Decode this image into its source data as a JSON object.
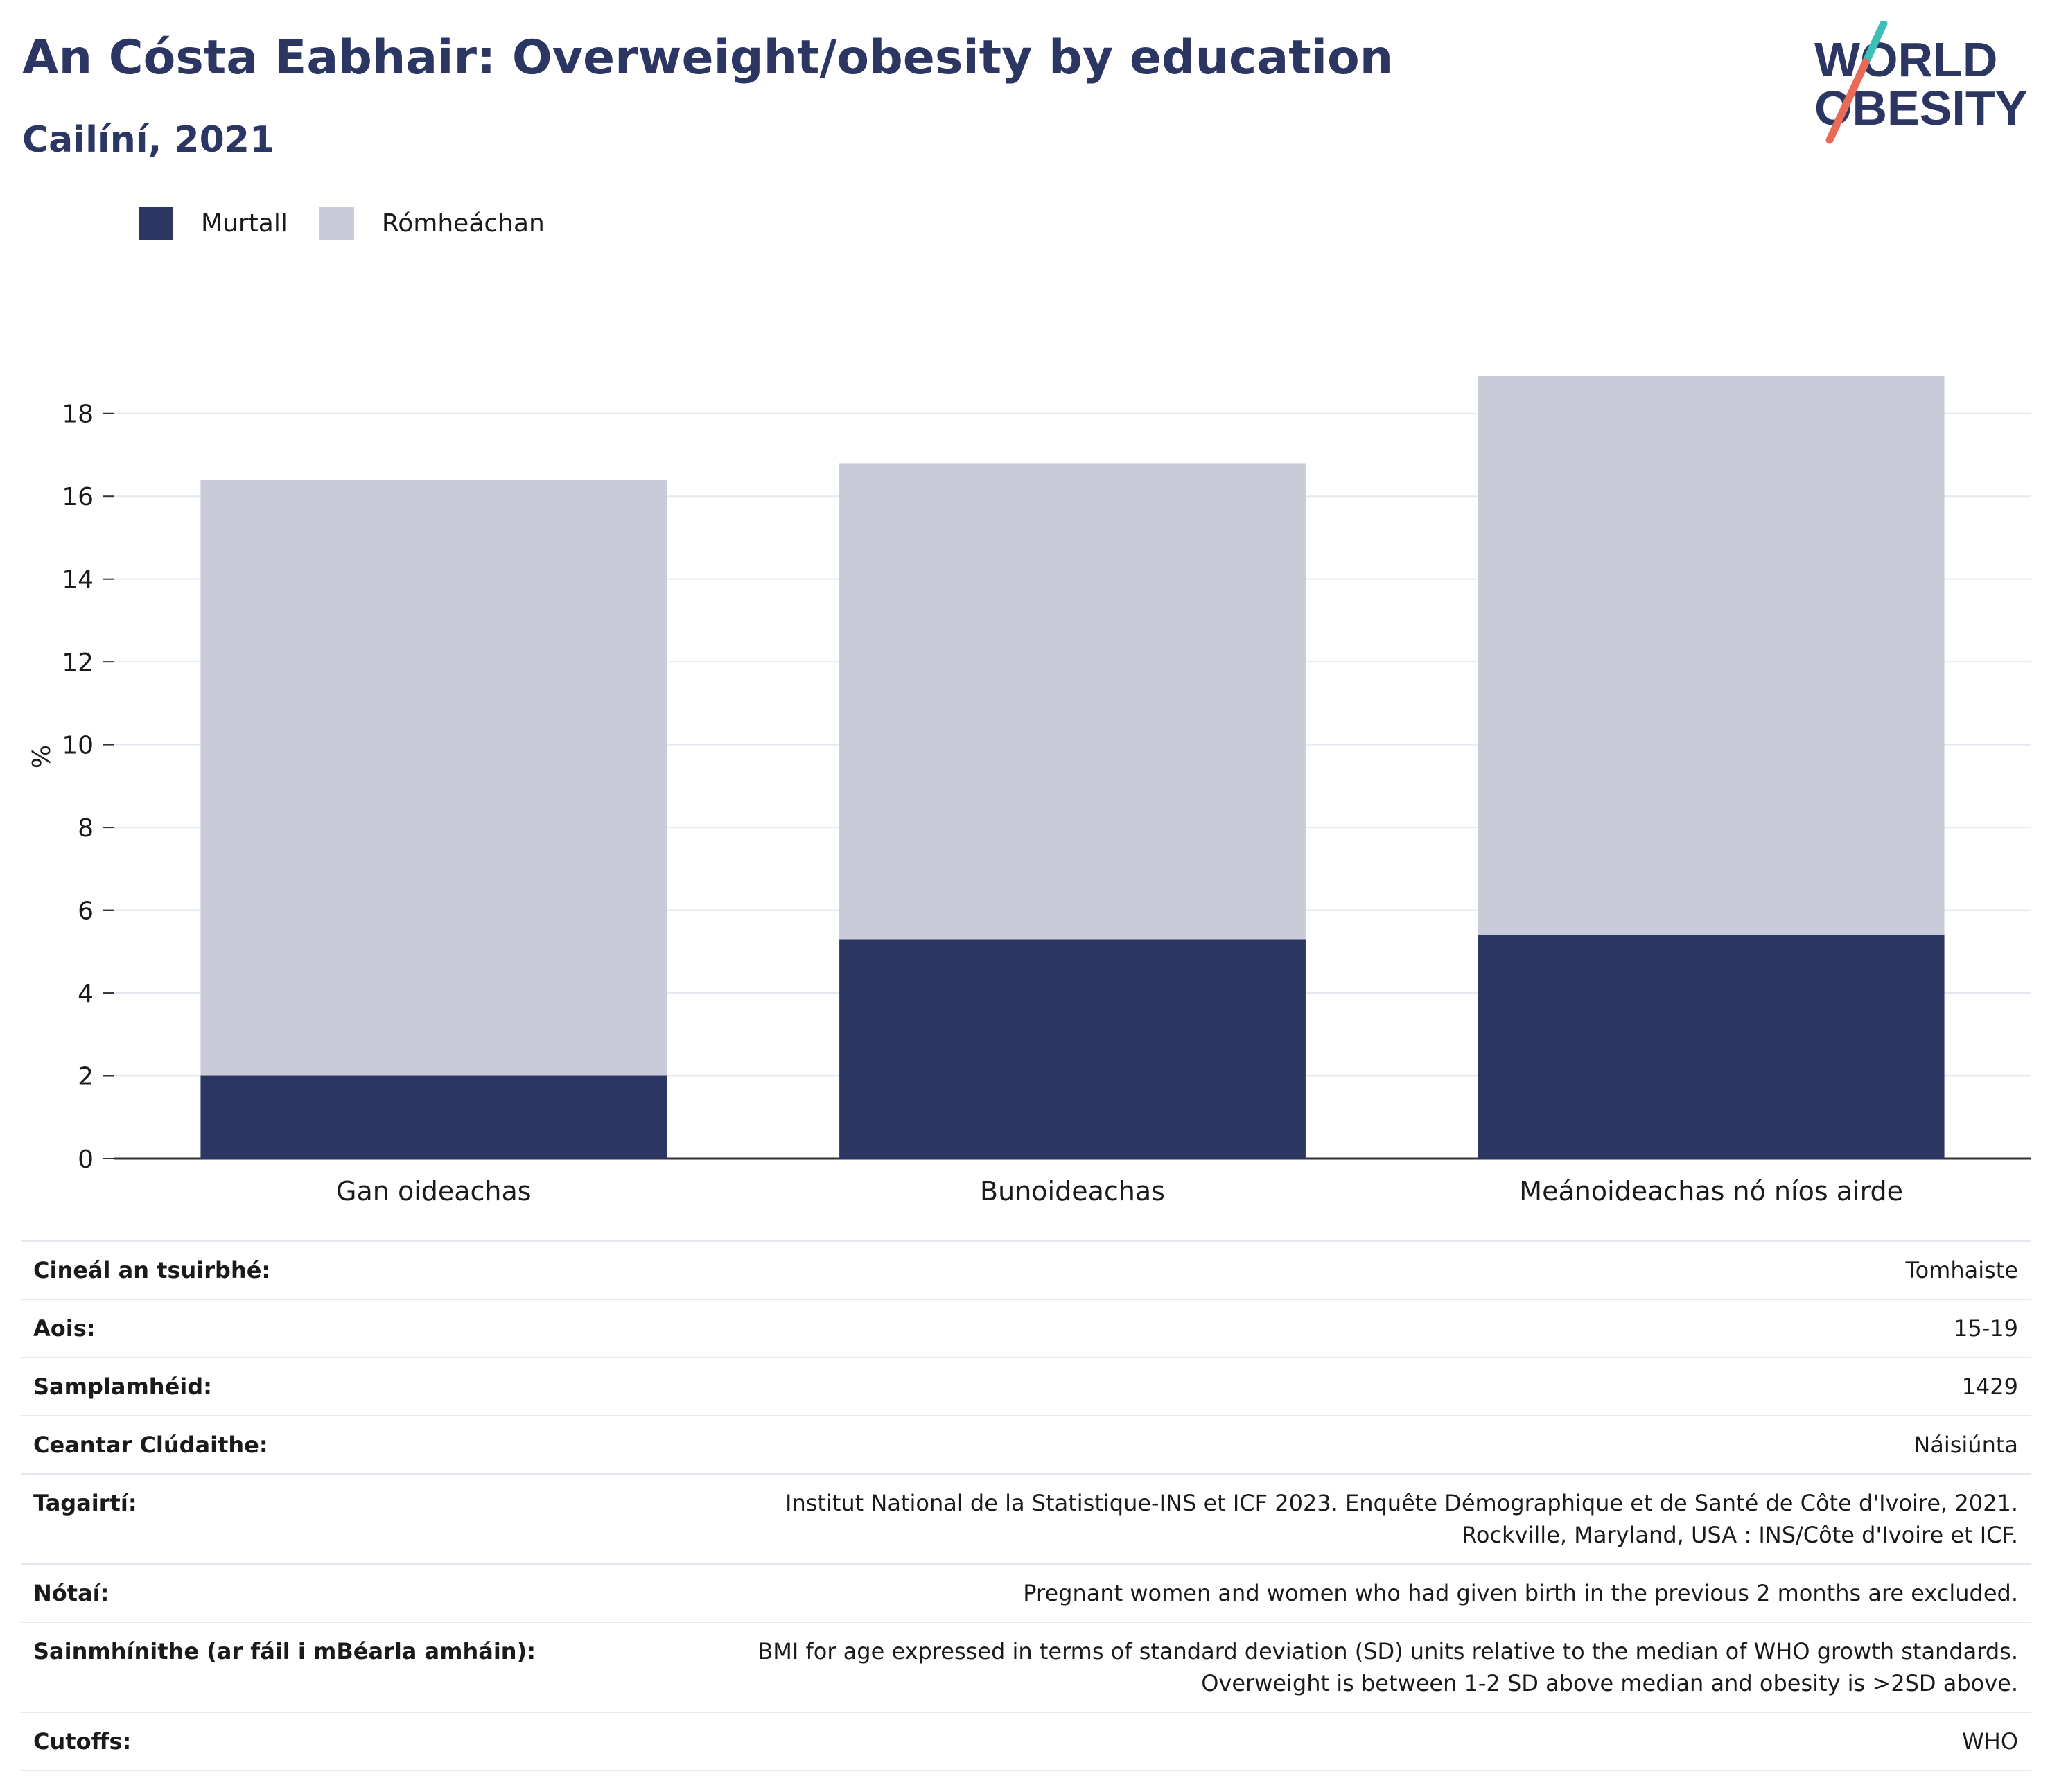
{
  "title": "An Cósta Eabhair: Overweight/obesity by education",
  "subtitle": "Cailíní, 2021",
  "logo": {
    "line1": "WORLD",
    "line2": "OBESITY",
    "navy": "#2b3663",
    "teal": "#3bbfb8",
    "coral": "#e96a57"
  },
  "colors": {
    "obese": "#2b3663",
    "overweight": "#c9ccd8",
    "grid": "#e6e8f0",
    "axis": "#333333"
  },
  "legend": [
    {
      "label": "Murtall",
      "color": "#2b3663"
    },
    {
      "label": "Rómheáchan",
      "color": "#c9ccd8"
    }
  ],
  "chart_data": {
    "type": "bar",
    "stacked": true,
    "categories": [
      "Gan oideachas",
      "Bunoideachas",
      "Meánoideachas nó níos airde"
    ],
    "series": [
      {
        "name": "Murtall",
        "values": [
          2.0,
          5.3,
          5.4
        ]
      },
      {
        "name": "Rómheáchan",
        "values": [
          14.4,
          11.5,
          13.5
        ]
      }
    ],
    "totals": [
      16.4,
      16.8,
      18.9
    ],
    "ylabel": "%",
    "ylim": [
      0,
      19
    ],
    "yticks": [
      0,
      2,
      4,
      6,
      8,
      10,
      12,
      14,
      16,
      18
    ],
    "grid": true,
    "legend_position": "top-left"
  },
  "info": [
    {
      "key": "Cineál an tsuirbhé:",
      "value": "Tomhaiste"
    },
    {
      "key": "Aois:",
      "value": "15-19"
    },
    {
      "key": "Samplamhéid:",
      "value": "1429"
    },
    {
      "key": "Ceantar Clúdaithe:",
      "value": "Náisiúnta"
    },
    {
      "key": "Tagairtí:",
      "value": "Institut National de la Statistique-INS et ICF 2023. Enquête Démographique et de Santé de Côte d'Ivoire, 2021. Rockville, Maryland, USA : INS/Côte d'Ivoire et ICF."
    },
    {
      "key": "Nótaí:",
      "value": "Pregnant women and women who had given birth in the previous 2 months are excluded."
    },
    {
      "key": "Sainmhínithe (ar fáil i mBéarla amháin):",
      "value": "BMI for age expressed in terms of standard deviation (SD) units relative to the median of WHO growth standards. Overweight is between 1-2 SD above median and obesity is >2SD above."
    },
    {
      "key": "Cutoffs:",
      "value": "WHO"
    }
  ]
}
